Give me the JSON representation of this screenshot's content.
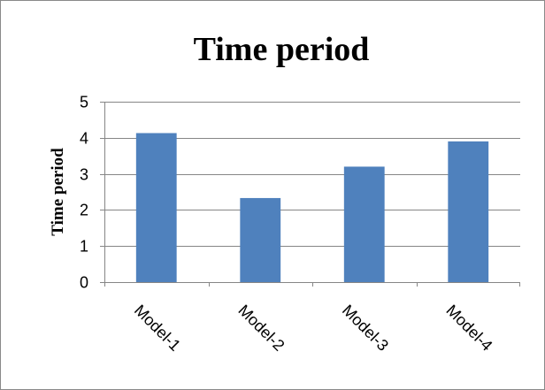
{
  "chart_data": {
    "type": "bar",
    "title": "Time period",
    "xlabel": "",
    "ylabel": "Time period",
    "categories": [
      "Model-1",
      "Model-2",
      "Model-3",
      "Model-4"
    ],
    "values": [
      4.13,
      2.33,
      3.2,
      3.9
    ],
    "ylim": [
      0,
      5
    ],
    "yticks": [
      "0",
      "1",
      "2",
      "3",
      "4",
      "5"
    ],
    "grid": true,
    "legend": "none",
    "colors": {
      "bar": "#4F81BD",
      "grid": "#868686",
      "axis": "#868686",
      "frame": "#898989"
    }
  }
}
